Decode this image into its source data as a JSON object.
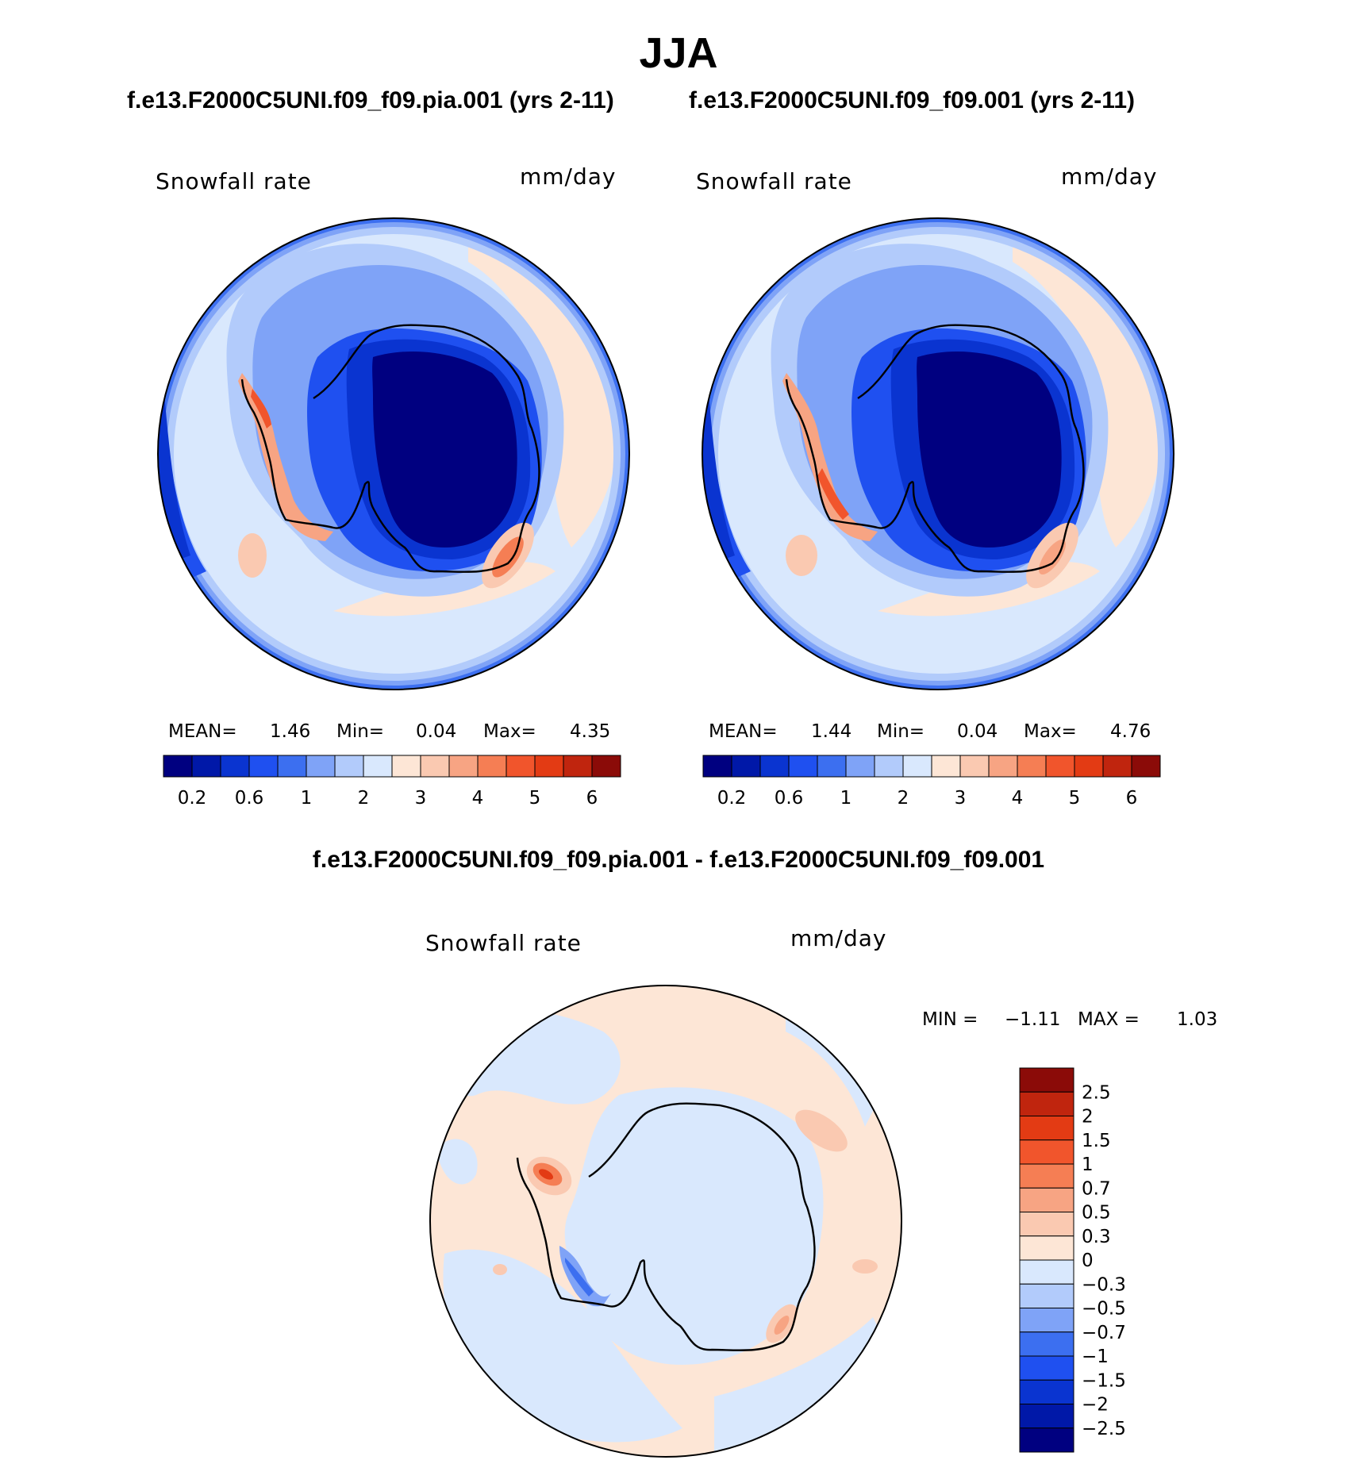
{
  "figure_title": "JJA",
  "panels": [
    {
      "case_title": "f.e13.F2000C5UNI.f09_f09.pia.001 (yrs 2-11)",
      "variable_label": "Snowfall rate",
      "units_label": "mm/day",
      "stats": {
        "mean_label": "MEAN=",
        "mean": "1.46",
        "min_label": "Min=",
        "min": "0.04",
        "max_label": "Max=",
        "max": "4.35"
      }
    },
    {
      "case_title": "f.e13.F2000C5UNI.f09_f09.001 (yrs 2-11)",
      "variable_label": "Snowfall rate",
      "units_label": "mm/day",
      "stats": {
        "mean_label": "MEAN=",
        "mean": "1.44",
        "min_label": "Min=",
        "min": "0.04",
        "max_label": "Max=",
        "max": "4.76"
      }
    }
  ],
  "difference_panel": {
    "title": "f.e13.F2000C5UNI.f09_f09.pia.001 - f.e13.F2000C5UNI.f09_f09.001",
    "variable_label": "Snowfall rate",
    "units_label": "mm/day",
    "stats": {
      "min_label": "MIN =",
      "min": "−1.11",
      "max_label": "MAX =",
      "max": "1.03"
    }
  },
  "colors": {
    "abs_scale": [
      "#000080",
      "#0018a8",
      "#0a34d0",
      "#1f50f0",
      "#3c6ff0",
      "#7fa3f7",
      "#b2cbfb",
      "#d9e8fd",
      "#fde6d6",
      "#fac9b1",
      "#f7a483",
      "#f57e54",
      "#f1552c",
      "#e33b14",
      "#c0250e",
      "#8b0b08"
    ],
    "diff_scale": [
      "#000080",
      "#0018a8",
      "#0a34d0",
      "#1f50f0",
      "#3c6ff0",
      "#7fa3f7",
      "#b2cbfb",
      "#d9e8fd",
      "#fde6d6",
      "#fac9b1",
      "#f7a483",
      "#f57e54",
      "#f1552c",
      "#e33b14",
      "#c0250e",
      "#8b0b08"
    ]
  },
  "chart_data": [
    {
      "type": "heatmap",
      "projection": "south polar stereographic",
      "variable": "Snowfall rate",
      "units": "mm/day",
      "colorbar": {
        "orientation": "horizontal",
        "levels": [
          0.1,
          0.2,
          0.4,
          0.6,
          0.8,
          1,
          1.5,
          2,
          2.5,
          3,
          3.5,
          4,
          4.5,
          5,
          5.5,
          6
        ],
        "tick_labels": [
          "0.2",
          "0.6",
          "1",
          "2",
          "3",
          "4",
          "5",
          "6"
        ]
      },
      "mean": 1.46,
      "min": 0.04,
      "max": 4.35
    },
    {
      "type": "heatmap",
      "projection": "south polar stereographic",
      "variable": "Snowfall rate",
      "units": "mm/day",
      "colorbar": {
        "orientation": "horizontal",
        "levels": [
          0.1,
          0.2,
          0.4,
          0.6,
          0.8,
          1,
          1.5,
          2,
          2.5,
          3,
          3.5,
          4,
          4.5,
          5,
          5.5,
          6
        ],
        "tick_labels": [
          "0.2",
          "0.6",
          "1",
          "2",
          "3",
          "4",
          "5",
          "6"
        ]
      },
      "mean": 1.44,
      "min": 0.04,
      "max": 4.76
    },
    {
      "type": "heatmap",
      "projection": "south polar stereographic",
      "variable": "Snowfall rate",
      "units": "mm/day",
      "colorbar": {
        "orientation": "vertical",
        "levels": [
          -2.5,
          -2,
          -1.5,
          -1,
          -0.7,
          -0.5,
          -0.3,
          0,
          0.3,
          0.5,
          0.7,
          1,
          1.5,
          2,
          2.5
        ],
        "tick_labels": [
          "2.5",
          "2",
          "1.5",
          "1",
          "0.7",
          "0.5",
          "0.3",
          "0",
          "−0.3",
          "−0.5",
          "−0.7",
          "−1",
          "−1.5",
          "−2",
          "−2.5"
        ]
      },
      "min": -1.11,
      "max": 1.03
    }
  ]
}
